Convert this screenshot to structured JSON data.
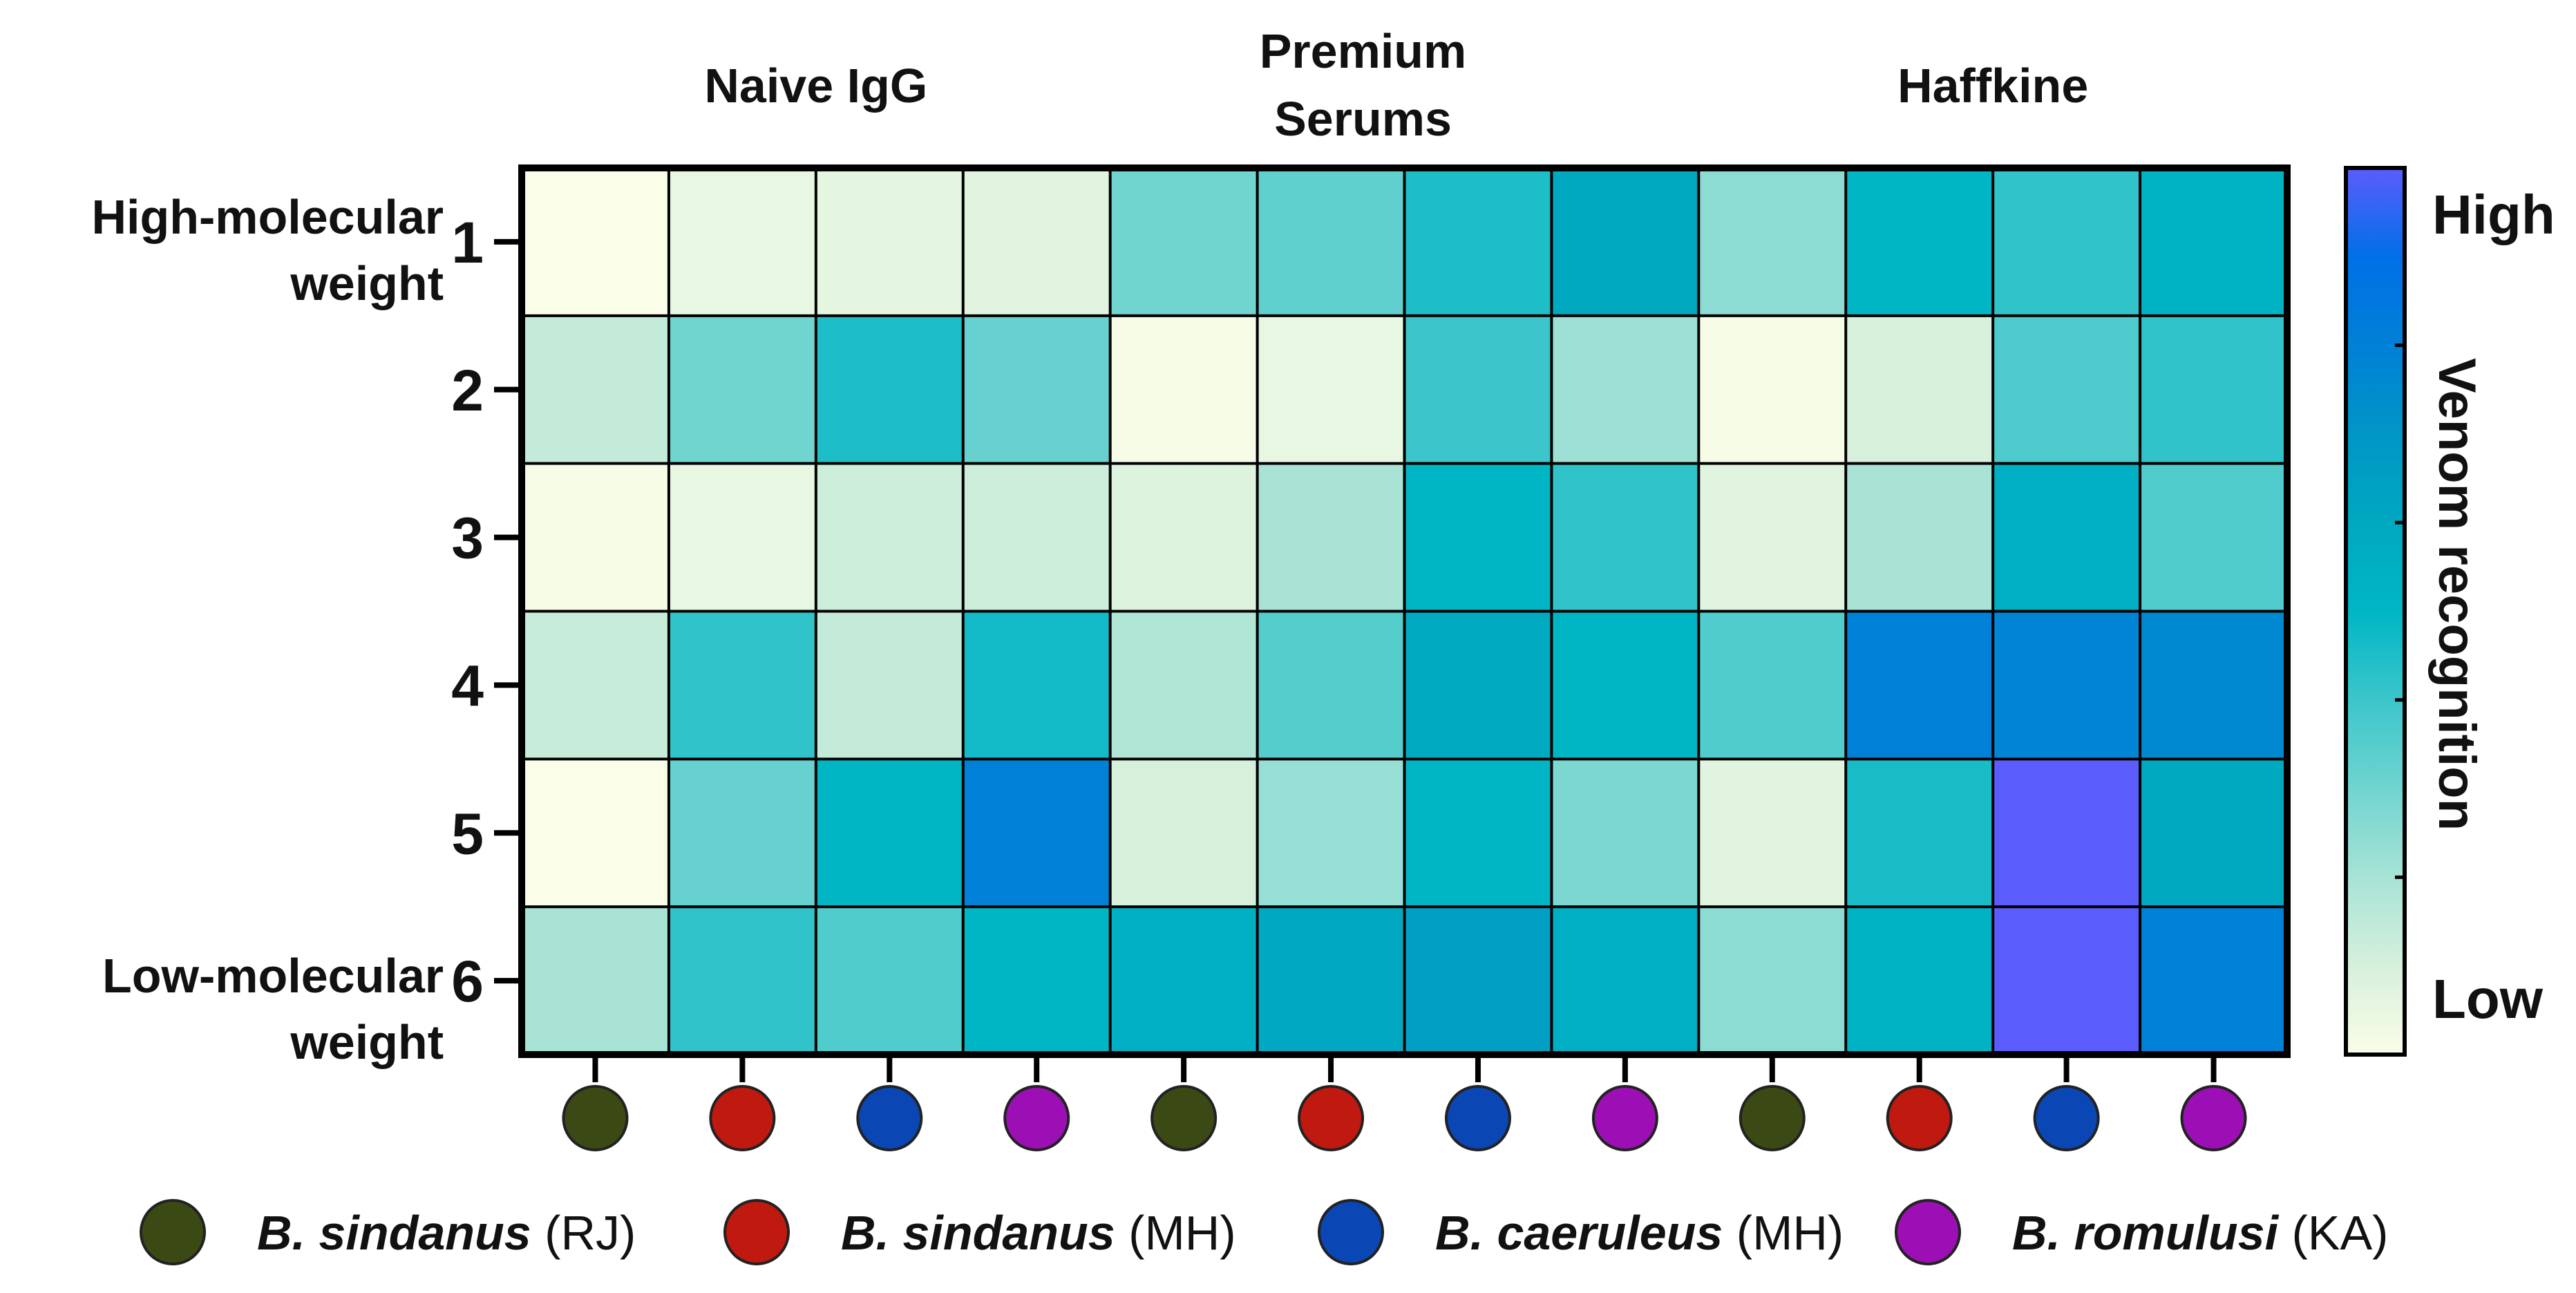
{
  "chart_data": {
    "type": "heatmap",
    "title": "",
    "group_titles": [
      {
        "label": "Naive IgG"
      },
      {
        "label": "Premium\nSerums"
      },
      {
        "label": "Haffkine"
      }
    ],
    "row_labels": [
      "1",
      "2",
      "3",
      "4",
      "5",
      "6"
    ],
    "row_annotations": {
      "top": "High-molecular\nweight",
      "bottom": "Low-molecular\nweight"
    },
    "column_species": [
      "sindanus_rj",
      "sindanus_mh",
      "caeruleus_mh",
      "romulusi_ka",
      "sindanus_rj",
      "sindanus_mh",
      "caeruleus_mh",
      "romulusi_ka",
      "sindanus_rj",
      "sindanus_mh",
      "caeruleus_mh",
      "romulusi_ka"
    ],
    "values": [
      [
        0.0,
        0.05,
        0.06,
        0.07,
        0.3,
        0.33,
        0.45,
        0.6,
        0.25,
        0.5,
        0.42,
        0.52
      ],
      [
        0.14,
        0.3,
        0.45,
        0.32,
        0.01,
        0.05,
        0.4,
        0.22,
        0.01,
        0.1,
        0.37,
        0.42
      ],
      [
        0.01,
        0.05,
        0.12,
        0.12,
        0.08,
        0.2,
        0.5,
        0.42,
        0.07,
        0.2,
        0.55,
        0.36
      ],
      [
        0.13,
        0.42,
        0.14,
        0.47,
        0.18,
        0.35,
        0.58,
        0.5,
        0.36,
        0.8,
        0.78,
        0.76
      ],
      [
        0.0,
        0.32,
        0.5,
        0.8,
        0.1,
        0.23,
        0.5,
        0.28,
        0.07,
        0.46,
        1.0,
        0.6
      ],
      [
        0.2,
        0.42,
        0.36,
        0.5,
        0.55,
        0.59,
        0.65,
        0.55,
        0.25,
        0.52,
        1.0,
        0.8
      ]
    ],
    "color_scale": {
      "stops": [
        "#fafde7",
        "#d6f0dc",
        "#a8e3d6",
        "#70d4cf",
        "#3cc6cb",
        "#00b6c5",
        "#00a8c0",
        "#0096c6",
        "#0080d6",
        "#0070e8",
        "#5b5cfc"
      ],
      "high_label": "High",
      "low_label": "Low",
      "axis_label": "Venom recognition"
    },
    "legend": [
      {
        "key": "sindanus_rj",
        "italic": "B. sindanus",
        "suffix": " (RJ)",
        "color": "#3b4a14"
      },
      {
        "key": "sindanus_mh",
        "italic": "B. sindanus",
        "suffix": " (MH)",
        "color": "#c0190f"
      },
      {
        "key": "caeruleus_mh",
        "italic": "B. caeruleus",
        "suffix": " (MH)",
        "color": "#0a46b4"
      },
      {
        "key": "romulusi_ka",
        "italic": "B. romulusi",
        "suffix": " (KA)",
        "color": "#9b0fb4"
      }
    ]
  }
}
